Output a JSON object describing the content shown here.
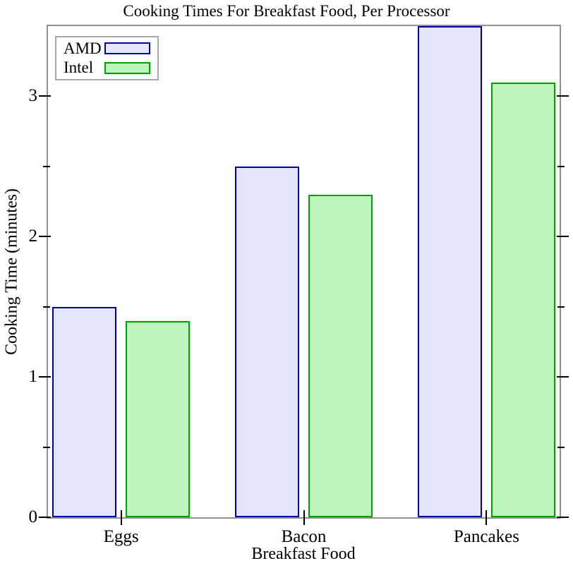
{
  "chart_data": {
    "type": "bar",
    "title": "Cooking Times For Breakfast Food, Per Processor",
    "xlabel": "Breakfast Food",
    "ylabel": "Cooking Time (minutes)",
    "categories": [
      "Eggs",
      "Bacon",
      "Pancakes"
    ],
    "series": [
      {
        "name": "AMD",
        "values": [
          1.5,
          2.5,
          3.5
        ],
        "fill_color": "#e4e4fa",
        "border_color": "#0000a0"
      },
      {
        "name": "Intel",
        "values": [
          1.4,
          2.3,
          3.1
        ],
        "fill_color": "#bdf5bd",
        "border_color": "#00a000"
      }
    ],
    "ylim": [
      0,
      3.5
    ],
    "y_major_ticks": [
      0,
      1,
      2,
      3
    ],
    "y_minor_ticks": [
      0.5,
      1.5,
      2.5
    ],
    "legend_position": "top-left",
    "grid": false,
    "axis_color": "#919191",
    "tick_color": "#000000",
    "legend_border_color": "#a8a8a8"
  }
}
